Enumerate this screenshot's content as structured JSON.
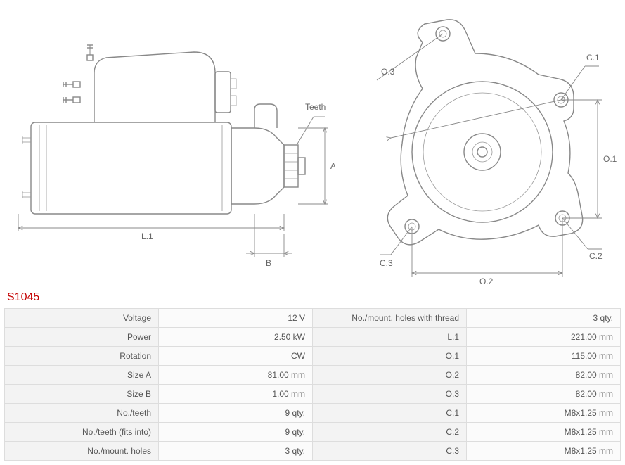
{
  "part_number": "S1045",
  "diagram_labels": {
    "teeth": "Teeth",
    "A": "A",
    "B": "B",
    "L1": "L.1",
    "O1": "O.1",
    "O2": "O.2",
    "O3": "O.3",
    "C1": "C.1",
    "C2": "C.2",
    "C3": "C.3"
  },
  "colors": {
    "stroke": "#888888",
    "dim_stroke": "#888888",
    "text": "#666666",
    "title": "#c40000",
    "table_bg": "#f3f3f3",
    "table_value_bg": "#fbfbfb",
    "table_border": "#dddddd"
  },
  "specs_left": [
    {
      "label": "Voltage",
      "value": "12 V"
    },
    {
      "label": "Power",
      "value": "2.50 kW"
    },
    {
      "label": "Rotation",
      "value": "CW"
    },
    {
      "label": "Size A",
      "value": "81.00 mm"
    },
    {
      "label": "Size B",
      "value": "1.00 mm"
    },
    {
      "label": "No./teeth",
      "value": "9 qty."
    },
    {
      "label": "No./teeth (fits into)",
      "value": "9 qty."
    },
    {
      "label": "No./mount. holes",
      "value": "3 qty."
    }
  ],
  "specs_right": [
    {
      "label": "No./mount. holes with thread",
      "value": "3 qty."
    },
    {
      "label": "L.1",
      "value": "221.00 mm"
    },
    {
      "label": "O.1",
      "value": "115.00 mm"
    },
    {
      "label": "O.2",
      "value": "82.00 mm"
    },
    {
      "label": "O.3",
      "value": "82.00 mm"
    },
    {
      "label": "C.1",
      "value": "M8x1.25 mm"
    },
    {
      "label": "C.2",
      "value": "M8x1.25 mm"
    },
    {
      "label": "C.3",
      "value": "M8x1.25 mm"
    }
  ]
}
